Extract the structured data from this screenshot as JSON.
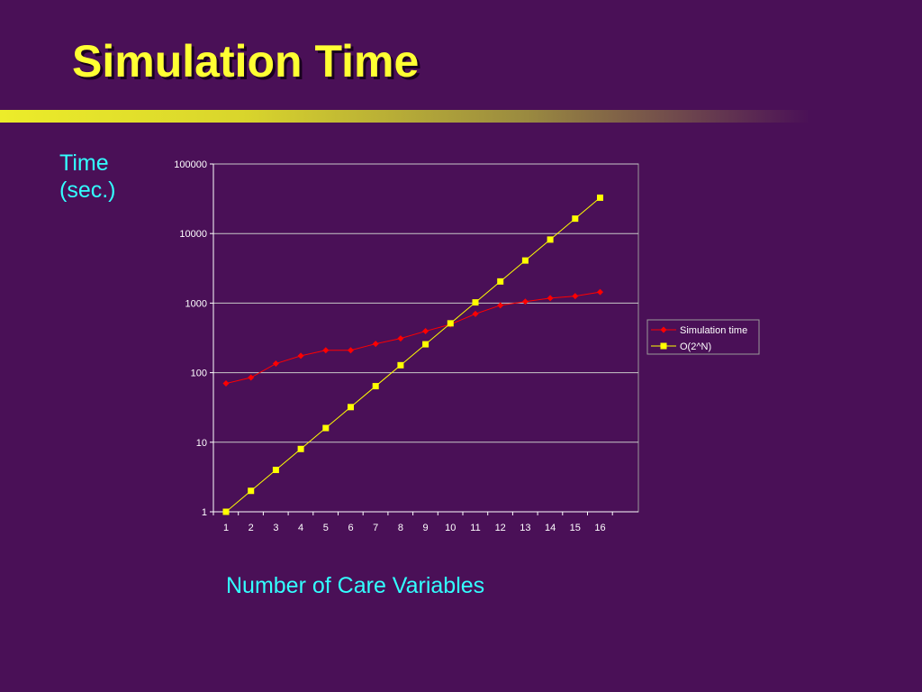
{
  "slide": {
    "title": "Simulation Time",
    "ylabel": "Time\n(sec.)",
    "xlabel": "Number of Care Variables"
  },
  "colors": {
    "background": "#4a1057",
    "title": "#ffff33",
    "axis_labels": "#33ffff",
    "series1": "#ff0000",
    "series2": "#ffff00",
    "gridlines": "#c8c8c8"
  },
  "chart_data": {
    "type": "line",
    "y_scale": "log",
    "ylim": [
      1,
      100000
    ],
    "y_ticks": [
      1,
      10,
      100,
      1000,
      10000,
      100000
    ],
    "x": [
      1,
      2,
      3,
      4,
      5,
      6,
      7,
      8,
      9,
      10,
      11,
      12,
      13,
      14,
      15,
      16
    ],
    "grid": "horizontal",
    "legend_position": "right",
    "series": [
      {
        "name": "Simulation time",
        "marker": "diamond",
        "color": "#ff0000",
        "values": [
          70,
          85,
          135,
          175,
          210,
          210,
          260,
          310,
          395,
          495,
          700,
          930,
          1050,
          1180,
          1260,
          1440
        ]
      },
      {
        "name": "O(2^N)",
        "marker": "square",
        "color": "#ffff00",
        "values": [
          1,
          2,
          4,
          8,
          16,
          32,
          64,
          128,
          256,
          512,
          1024,
          2048,
          4096,
          8192,
          16384,
          32768
        ]
      }
    ]
  }
}
